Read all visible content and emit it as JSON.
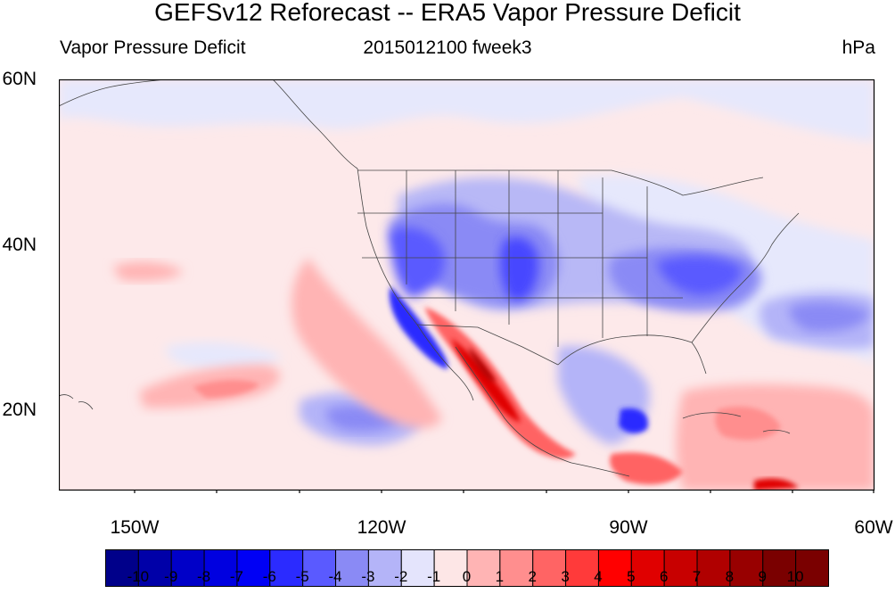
{
  "title": "GEFSv12 Reforecast -- ERA5 Vapor Pressure Deficit",
  "subtitle_left": "Vapor Pressure Deficit",
  "subtitle_center": "2015012100 fweek3",
  "subtitle_right": "hPa",
  "lat_labels": [
    "60N",
    "40N",
    "20N"
  ],
  "lon_labels": [
    "150W",
    "120W",
    "90W",
    "60W"
  ],
  "colorbar": {
    "labels": [
      "-10",
      "-9",
      "-8",
      "-7",
      "-6",
      "-5",
      "-4",
      "-3",
      "-2",
      "-1",
      "0",
      "1",
      "2",
      "3",
      "4",
      "5",
      "6",
      "7",
      "8",
      "9",
      "10"
    ],
    "colors": [
      "#00008a",
      "#0000a8",
      "#0000c8",
      "#0000e0",
      "#0000f5",
      "#2b2bff",
      "#5a5aff",
      "#8a8af5",
      "#b4b4f8",
      "#e4e4fc",
      "#fde6e6",
      "#ffb4b4",
      "#ff8e8e",
      "#ff6464",
      "#ff3a3a",
      "#ff0000",
      "#e00000",
      "#c80000",
      "#b00000",
      "#980000",
      "#7a0000"
    ]
  }
}
